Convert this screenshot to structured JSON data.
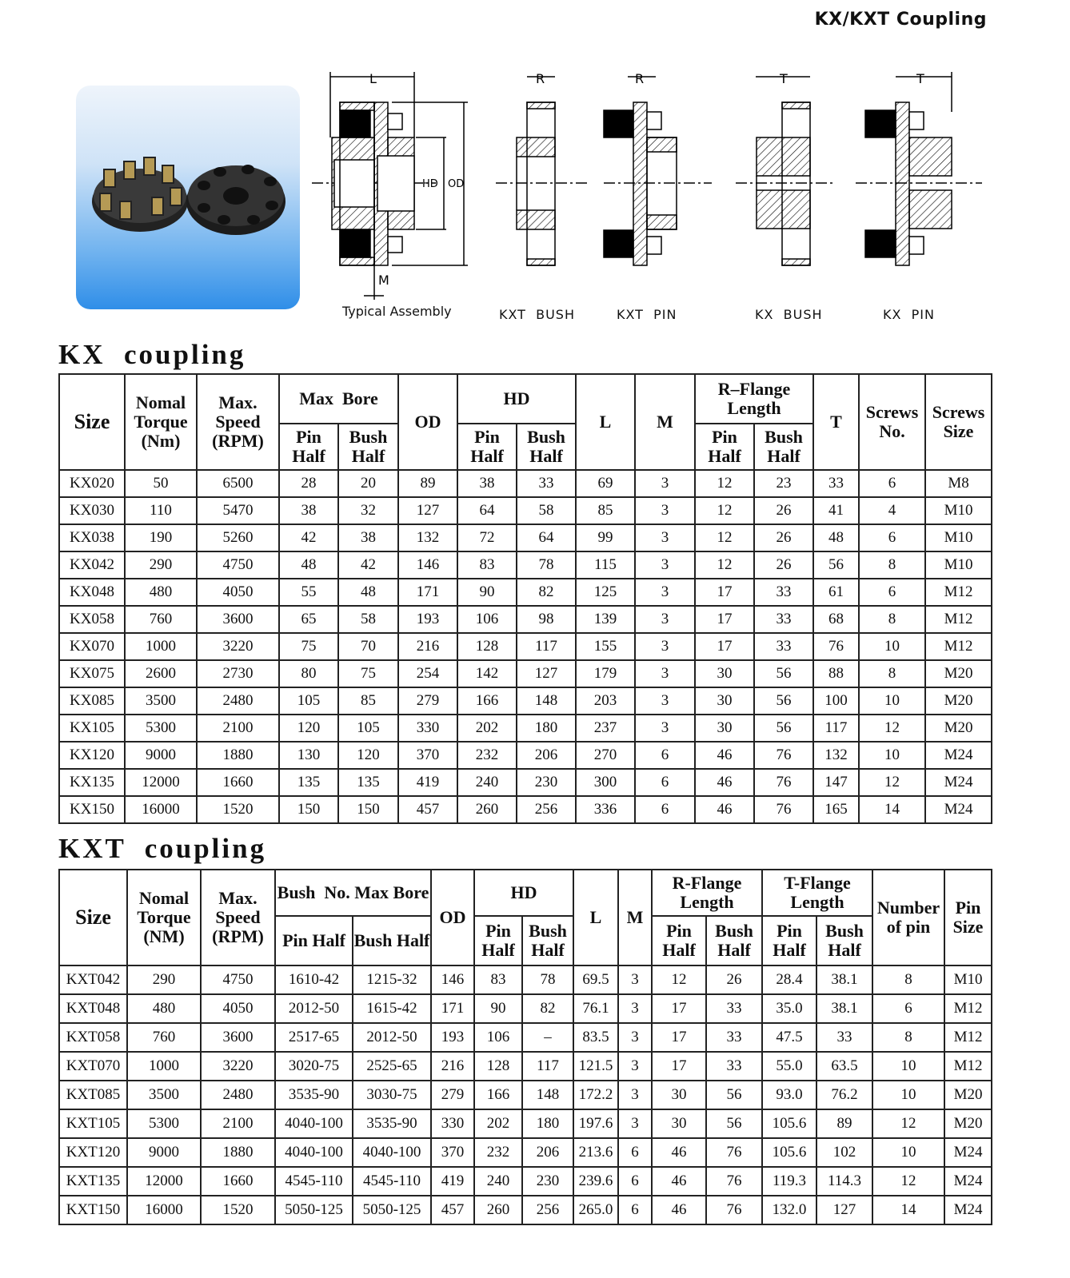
{
  "header": {
    "title": "KX/KXT Coupling"
  },
  "figures": {
    "labels": {
      "assembly": "Typical Assembly",
      "kxt_bush": "KXT  BUSH",
      "kxt_pin": "KXT  PIN",
      "kx_bush": "KX  BUSH",
      "kx_pin": "KX  PIN"
    },
    "dims": {
      "L": "L",
      "M": "M",
      "HD": "HD",
      "OD": "OD",
      "R": "R",
      "T": "T"
    }
  },
  "kx": {
    "title": "KX  coupling",
    "headers": {
      "size": "Size",
      "torque": "Nomal Torque (Nm)",
      "speed": "Max. Speed (RPM)",
      "max_bore": "Max  Bore",
      "od": "OD",
      "hd": "HD",
      "l": "L",
      "m": "M",
      "r_flange": "R–Flange Length",
      "t": "T",
      "screws_no": "Screws No.",
      "screws_size": "Screws Size",
      "pin_half": "Pin Half",
      "bush_half": "Bush Half"
    },
    "rows": [
      [
        "KX020",
        "50",
        "6500",
        "28",
        "20",
        "89",
        "38",
        "33",
        "69",
        "3",
        "12",
        "23",
        "33",
        "6",
        "M8"
      ],
      [
        "KX030",
        "110",
        "5470",
        "38",
        "32",
        "127",
        "64",
        "58",
        "85",
        "3",
        "12",
        "26",
        "41",
        "4",
        "M10"
      ],
      [
        "KX038",
        "190",
        "5260",
        "42",
        "38",
        "132",
        "72",
        "64",
        "99",
        "3",
        "12",
        "26",
        "48",
        "6",
        "M10"
      ],
      [
        "KX042",
        "290",
        "4750",
        "48",
        "42",
        "146",
        "83",
        "78",
        "115",
        "3",
        "12",
        "26",
        "56",
        "8",
        "M10"
      ],
      [
        "KX048",
        "480",
        "4050",
        "55",
        "48",
        "171",
        "90",
        "82",
        "125",
        "3",
        "17",
        "33",
        "61",
        "6",
        "M12"
      ],
      [
        "KX058",
        "760",
        "3600",
        "65",
        "58",
        "193",
        "106",
        "98",
        "139",
        "3",
        "17",
        "33",
        "68",
        "8",
        "M12"
      ],
      [
        "KX070",
        "1000",
        "3220",
        "75",
        "70",
        "216",
        "128",
        "117",
        "155",
        "3",
        "17",
        "33",
        "76",
        "10",
        "M12"
      ],
      [
        "KX075",
        "2600",
        "2730",
        "80",
        "75",
        "254",
        "142",
        "127",
        "179",
        "3",
        "30",
        "56",
        "88",
        "8",
        "M20"
      ],
      [
        "KX085",
        "3500",
        "2480",
        "105",
        "85",
        "279",
        "166",
        "148",
        "203",
        "3",
        "30",
        "56",
        "100",
        "10",
        "M20"
      ],
      [
        "KX105",
        "5300",
        "2100",
        "120",
        "105",
        "330",
        "202",
        "180",
        "237",
        "3",
        "30",
        "56",
        "117",
        "12",
        "M20"
      ],
      [
        "KX120",
        "9000",
        "1880",
        "130",
        "120",
        "370",
        "232",
        "206",
        "270",
        "6",
        "46",
        "76",
        "132",
        "10",
        "M24"
      ],
      [
        "KX135",
        "12000",
        "1660",
        "135",
        "135",
        "419",
        "240",
        "230",
        "300",
        "6",
        "46",
        "76",
        "147",
        "12",
        "M24"
      ],
      [
        "KX150",
        "16000",
        "1520",
        "150",
        "150",
        "457",
        "260",
        "256",
        "336",
        "6",
        "46",
        "76",
        "165",
        "14",
        "M24"
      ]
    ]
  },
  "kxt": {
    "title": "KXT  coupling",
    "headers": {
      "size": "Size",
      "torque": "Nomal Torque (NM)",
      "speed": "Max. Speed (RPM)",
      "bush_no": "Bush  No. Max Bore",
      "od": "OD",
      "hd": "HD",
      "l": "L",
      "m": "M",
      "r_flange": "R-Flange Length",
      "t_flange": "T-Flange Length",
      "num_pin": "Number of pin",
      "pin_size": "Pin Size",
      "pin_half": "Pin Half",
      "bush_half": "Bush Half"
    },
    "rows": [
      [
        "KXT042",
        "290",
        "4750",
        "1610-42",
        "1215-32",
        "146",
        "83",
        "78",
        "69.5",
        "3",
        "12",
        "26",
        "28.4",
        "38.1",
        "8",
        "M10"
      ],
      [
        "KXT048",
        "480",
        "4050",
        "2012-50",
        "1615-42",
        "171",
        "90",
        "82",
        "76.1",
        "3",
        "17",
        "33",
        "35.0",
        "38.1",
        "6",
        "M12"
      ],
      [
        "KXT058",
        "760",
        "3600",
        "2517-65",
        "2012-50",
        "193",
        "106",
        "–",
        "83.5",
        "3",
        "17",
        "33",
        "47.5",
        "33",
        "8",
        "M12"
      ],
      [
        "KXT070",
        "1000",
        "3220",
        "3020-75",
        "2525-65",
        "216",
        "128",
        "117",
        "121.5",
        "3",
        "17",
        "33",
        "55.0",
        "63.5",
        "10",
        "M12"
      ],
      [
        "KXT085",
        "3500",
        "2480",
        "3535-90",
        "3030-75",
        "279",
        "166",
        "148",
        "172.2",
        "3",
        "30",
        "56",
        "93.0",
        "76.2",
        "10",
        "M20"
      ],
      [
        "KXT105",
        "5300",
        "2100",
        "4040-100",
        "3535-90",
        "330",
        "202",
        "180",
        "197.6",
        "3",
        "30",
        "56",
        "105.6",
        "89",
        "12",
        "M20"
      ],
      [
        "KXT120",
        "9000",
        "1880",
        "4040-100",
        "4040-100",
        "370",
        "232",
        "206",
        "213.6",
        "6",
        "46",
        "76",
        "105.6",
        "102",
        "10",
        "M24"
      ],
      [
        "KXT135",
        "12000",
        "1660",
        "4545-110",
        "4545-110",
        "419",
        "240",
        "230",
        "239.6",
        "6",
        "46",
        "76",
        "119.3",
        "114.3",
        "12",
        "M24"
      ],
      [
        "KXT150",
        "16000",
        "1520",
        "5050-125",
        "5050-125",
        "457",
        "260",
        "256",
        "265.0",
        "6",
        "46",
        "76",
        "132.0",
        "127",
        "14",
        "M24"
      ]
    ]
  }
}
